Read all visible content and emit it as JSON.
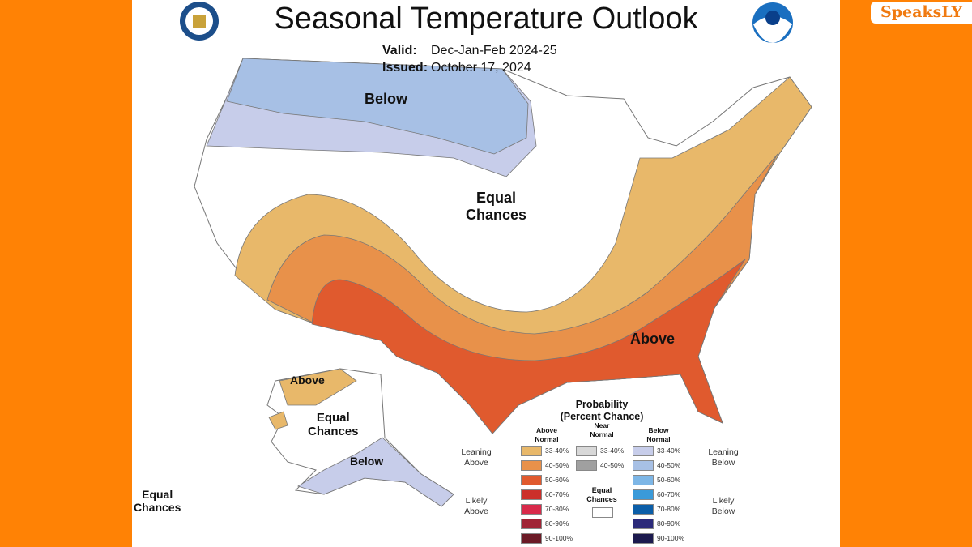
{
  "brand": "SpeaksLY",
  "header": {
    "title": "Seasonal Temperature Outlook",
    "valid_label": "Valid:",
    "valid_value": "Dec-Jan-Feb 2024-25",
    "issued_label": "Issued:",
    "issued_value": "October 17, 2024"
  },
  "logos": {
    "left": "Department of Commerce seal",
    "right": "NOAA"
  },
  "map_labels": {
    "below": "Below",
    "equal_chances": "Equal\nChances",
    "above": "Above",
    "ak_above": "Above",
    "ak_equal": "Equal\nChances",
    "ak_below": "Below",
    "hi_equal": "Equal\nChances"
  },
  "colors": {
    "above_33_40": "#E8B86A",
    "above_40_50": "#E8914A",
    "above_50_60": "#E05A2E",
    "below_33_40": "#C7CDEA",
    "below_40_50": "#A7C0E5",
    "orange_frame": "#FF8205"
  },
  "legend": {
    "title": "Probability",
    "subtitle": "(Percent Chance)",
    "col_above": "Above\nNormal",
    "col_near": "Near\nNormal",
    "col_below": "Below\nNormal",
    "leaning_above": "Leaning\nAbove",
    "likely_above": "Likely\nAbove",
    "leaning_below": "Leaning\nBelow",
    "likely_below": "Likely\nBelow",
    "equal_chances": "Equal\nChances",
    "above": [
      {
        "label": "33-40%",
        "color": "#E8B86A"
      },
      {
        "label": "40-50%",
        "color": "#E8914A"
      },
      {
        "label": "50-60%",
        "color": "#E05A2E"
      },
      {
        "label": "60-70%",
        "color": "#CC2F2A"
      },
      {
        "label": "70-80%",
        "color": "#D82A4A"
      },
      {
        "label": "80-90%",
        "color": "#A02435"
      },
      {
        "label": "90-100%",
        "color": "#6B1A26"
      }
    ],
    "near": [
      {
        "label": "33-40%",
        "color": "#D8D8D8"
      },
      {
        "label": "40-50%",
        "color": "#A0A0A0"
      }
    ],
    "below": [
      {
        "label": "33-40%",
        "color": "#C7CDEA"
      },
      {
        "label": "40-50%",
        "color": "#A7C0E5"
      },
      {
        "label": "50-60%",
        "color": "#7DB6E6"
      },
      {
        "label": "60-70%",
        "color": "#3A9AD9"
      },
      {
        "label": "70-80%",
        "color": "#0B5EA8"
      },
      {
        "label": "80-90%",
        "color": "#2C2A7A"
      },
      {
        "label": "90-100%",
        "color": "#1C1A4E"
      }
    ]
  }
}
